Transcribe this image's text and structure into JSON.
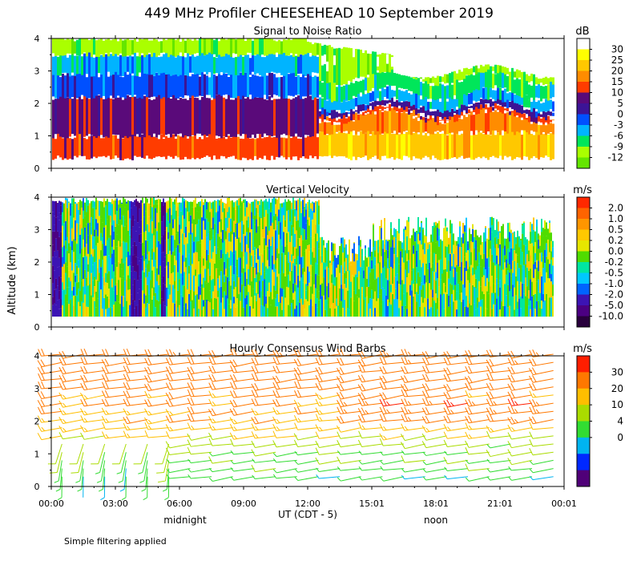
{
  "title": "449 MHz Profiler CHEESEHEAD 10 September 2019",
  "ylabel": "Altitude (km)",
  "xlabel": "UT  (CDT - 5)",
  "x_ticks": [
    "00:00",
    "03:00",
    "06:00",
    "09:00",
    "12:00",
    "15:01",
    "18:01",
    "21:01",
    "00:01"
  ],
  "local_labels": [
    "midnight",
    "noon"
  ],
  "footnote": "Simple filtering applied",
  "chart_data": [
    {
      "type": "heatmap",
      "title": "Signal to Noise Ratio",
      "unit": "dB",
      "ylim": [
        0,
        4
      ],
      "y_ticks": [
        "0",
        "1",
        "2",
        "3",
        "4"
      ],
      "xlim_hours": [
        0,
        24
      ],
      "colorbar": {
        "labels": [
          "30",
          "25",
          "20",
          "15",
          "10",
          "5",
          "0",
          "-3",
          "-6",
          "-9",
          "-12"
        ],
        "colors": [
          "#ffffff",
          "#ffff00",
          "#ffc800",
          "#ff8c00",
          "#ff3c00",
          "#5a0a7a",
          "#3c1496",
          "#0050ff",
          "#00b4ff",
          "#00e65a",
          "#aaff00",
          "#64e600"
        ]
      }
    },
    {
      "type": "heatmap",
      "title": "Vertical Velocity",
      "unit": "m/s",
      "ylim": [
        0,
        4
      ],
      "y_ticks": [
        "0",
        "1",
        "2",
        "3",
        "4"
      ],
      "xlim_hours": [
        0,
        24
      ],
      "colorbar": {
        "labels": [
          "2.0",
          "1.0",
          "0.5",
          "0.2",
          "0.0",
          "-0.2",
          "-0.5",
          "-1.0",
          "-2.0",
          "-5.0",
          "-10.0"
        ],
        "colors": [
          "#ff2800",
          "#ff6400",
          "#ff9600",
          "#ffc800",
          "#e6e600",
          "#50dc00",
          "#00e6a0",
          "#00c8ff",
          "#0064ff",
          "#3c14b4",
          "#4b0082",
          "#28003c"
        ]
      }
    },
    {
      "type": "wind_barbs",
      "title": "Hourly Consensus Wind Barbs",
      "unit": "m/s",
      "ylim": [
        0,
        4
      ],
      "y_ticks": [
        "0",
        "1",
        "2",
        "3",
        "4"
      ],
      "xlim_hours": [
        0,
        24
      ],
      "colorbar": {
        "labels": [
          "30",
          "20",
          "10",
          "4",
          "0"
        ],
        "colors": [
          "#ff1e00",
          "#ff7800",
          "#ffbe00",
          "#aadc00",
          "#32dc32",
          "#00b4f0",
          "#0028ff",
          "#500078"
        ]
      },
      "speed_profile_ms": [
        {
          "height_km": 0.5,
          "speed": 8
        },
        {
          "height_km": 1.0,
          "speed": 10
        },
        {
          "height_km": 1.5,
          "speed": 13
        },
        {
          "height_km": 2.0,
          "speed": 18
        },
        {
          "height_km": 2.5,
          "speed": 21
        },
        {
          "height_km": 3.0,
          "speed": 22
        },
        {
          "height_km": 3.5,
          "speed": 23
        },
        {
          "height_km": 4.0,
          "speed": 24
        }
      ]
    }
  ]
}
